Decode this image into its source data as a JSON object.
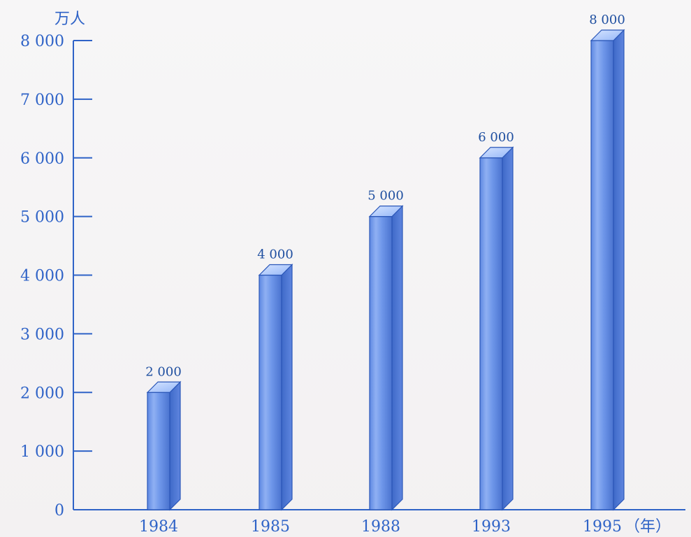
{
  "chart_data": {
    "type": "bar",
    "categories": [
      "1984",
      "1985",
      "1988",
      "1993",
      "1995"
    ],
    "values": [
      2000,
      4000,
      5000,
      6000,
      8000
    ],
    "data_labels": [
      "2 000",
      "4 000",
      "5 000",
      "6 000",
      "8 000"
    ],
    "yunit": "万人",
    "xunit": "（年）",
    "y_ticks": [
      0,
      1000,
      2000,
      3000,
      4000,
      5000,
      6000,
      7000,
      8000
    ],
    "y_tick_labels": [
      "0",
      "1 000",
      "2 000",
      "3 000",
      "4 000",
      "5 000",
      "6 000",
      "7 000",
      "8 000"
    ],
    "ylim": [
      0,
      8000
    ],
    "grid": false,
    "legend": "none"
  },
  "colors": {
    "axis": "#2f63c7",
    "text": "#2f63c7",
    "bar_front": "#6f97ea",
    "bar_side": "#4f79d6",
    "bar_top": "#a9c4ff",
    "bar_edge": "#2b57b8"
  }
}
